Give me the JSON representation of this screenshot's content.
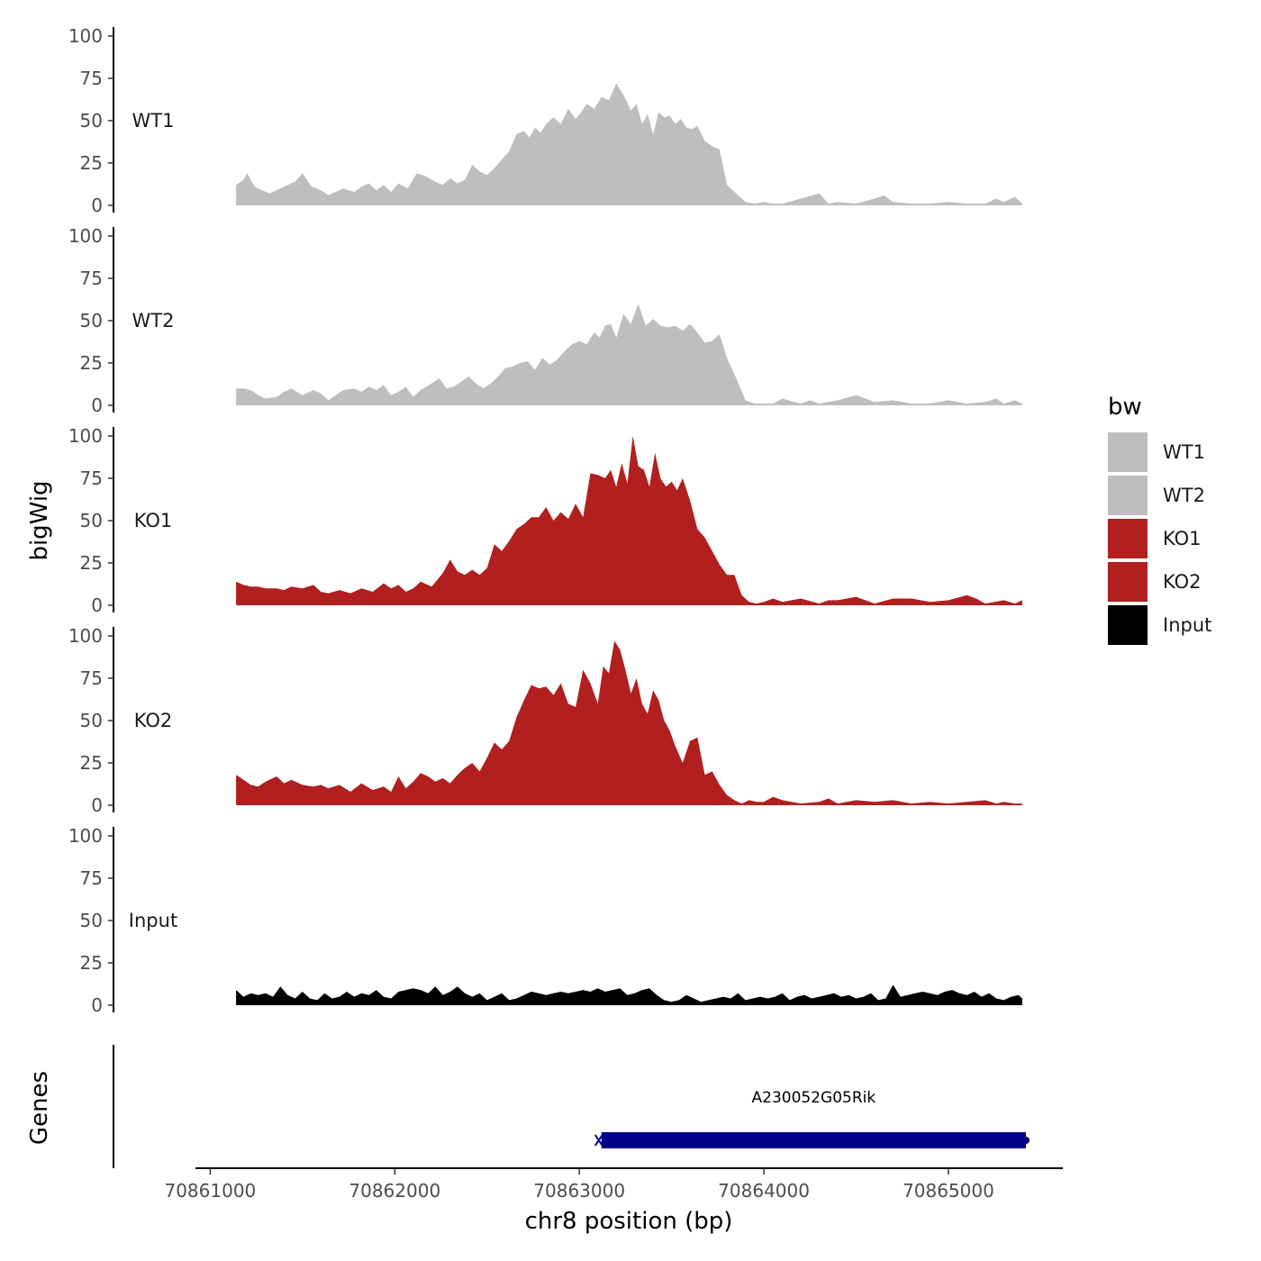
{
  "chart_data": {
    "type": "area",
    "ylabel": "bigWig",
    "xlabel": "chr8 position (bp)",
    "genes_label": "Genes",
    "ylim": [
      0,
      100
    ],
    "yticks": [
      0,
      25,
      50,
      75,
      100
    ],
    "ytick_labels": [
      "0",
      "25",
      "50",
      "75",
      "100"
    ],
    "xlim": [
      70860920,
      70865620
    ],
    "xticks": [
      70861000,
      70862000,
      70863000,
      70864000,
      70865000
    ],
    "xtick_labels": [
      "70861000",
      "70862000",
      "70863000",
      "70864000",
      "70865000"
    ],
    "signal_range": [
      70861140,
      70865400
    ],
    "legend": {
      "title": "bw",
      "entries": [
        {
          "label": "WT1",
          "color": "#bebebe"
        },
        {
          "label": "WT2",
          "color": "#bebebe"
        },
        {
          "label": "KO1",
          "color": "#b21f1f"
        },
        {
          "label": "KO2",
          "color": "#b21f1f"
        },
        {
          "label": "Input",
          "color": "#000000"
        }
      ]
    },
    "series": [
      {
        "name": "WT1",
        "label": "WT1",
        "color": "#bebebe",
        "x": [
          70861140,
          70861180,
          70861200,
          70861240,
          70861280,
          70861320,
          70861380,
          70861420,
          70861460,
          70861500,
          70861550,
          70861600,
          70861640,
          70861680,
          70861720,
          70861780,
          70861820,
          70861860,
          70861900,
          70861940,
          70861980,
          70862020,
          70862070,
          70862120,
          70862170,
          70862220,
          70862260,
          70862300,
          70862340,
          70862380,
          70862420,
          70862460,
          70862500,
          70862540,
          70862580,
          70862620,
          70862660,
          70862700,
          70862730,
          70862760,
          70862790,
          70862820,
          70862860,
          70862900,
          70862940,
          70862980,
          70863010,
          70863040,
          70863080,
          70863120,
          70863160,
          70863200,
          70863240,
          70863280,
          70863310,
          70863340,
          70863370,
          70863400,
          70863430,
          70863460,
          70863490,
          70863520,
          70863550,
          70863580,
          70863610,
          70863640,
          70863680,
          70863720,
          70863760,
          70863800,
          70863850,
          70863900,
          70863950,
          70864000,
          70864050,
          70864100,
          70864200,
          70864300,
          70864350,
          70864400,
          70864500,
          70864600,
          70864650,
          70864700,
          70864800,
          70864900,
          70865000,
          70865100,
          70865200,
          70865260,
          70865300,
          70865360,
          70865400
        ],
        "values": [
          12,
          15,
          19,
          11,
          9,
          7,
          10,
          12,
          14,
          19,
          11,
          9,
          6,
          8,
          10,
          8,
          11,
          13,
          9,
          12,
          8,
          13,
          10,
          19,
          17,
          14,
          12,
          16,
          13,
          15,
          24,
          20,
          18,
          22,
          27,
          32,
          42,
          44,
          40,
          46,
          43,
          48,
          52,
          48,
          57,
          51,
          55,
          60,
          57,
          64,
          62,
          72,
          65,
          56,
          60,
          48,
          54,
          42,
          55,
          52,
          53,
          48,
          51,
          46,
          45,
          47,
          38,
          35,
          33,
          12,
          7,
          2,
          1,
          2,
          1,
          1,
          4,
          7,
          1,
          2,
          1,
          4,
          6,
          2,
          1,
          1,
          2,
          1,
          1,
          4,
          2,
          5,
          1
        ]
      },
      {
        "name": "WT2",
        "label": "WT2",
        "color": "#bebebe",
        "x": [
          70861140,
          70861180,
          70861220,
          70861260,
          70861300,
          70861360,
          70861400,
          70861440,
          70861500,
          70861560,
          70861600,
          70861640,
          70861680,
          70861720,
          70861780,
          70861820,
          70861860,
          70861900,
          70861940,
          70861980,
          70862020,
          70862060,
          70862100,
          70862140,
          70862200,
          70862240,
          70862280,
          70862320,
          70862360,
          70862400,
          70862440,
          70862480,
          70862520,
          70862560,
          70862600,
          70862640,
          70862680,
          70862720,
          70862760,
          70862800,
          70862840,
          70862880,
          70862920,
          70862960,
          70863000,
          70863040,
          70863080,
          70863110,
          70863140,
          70863170,
          70863200,
          70863240,
          70863280,
          70863320,
          70863360,
          70863400,
          70863440,
          70863480,
          70863520,
          70863560,
          70863600,
          70863640,
          70863680,
          70863720,
          70863760,
          70863800,
          70863850,
          70863900,
          70863950,
          70864000,
          70864050,
          70864100,
          70864200,
          70864250,
          70864300,
          70864400,
          70864500,
          70864600,
          70864700,
          70864800,
          70864900,
          70865000,
          70865100,
          70865200,
          70865260,
          70865300,
          70865360,
          70865400
        ],
        "values": [
          10,
          10,
          9,
          6,
          4,
          5,
          8,
          10,
          6,
          9,
          7,
          3,
          6,
          9,
          10,
          8,
          11,
          9,
          12,
          6,
          8,
          11,
          5,
          9,
          13,
          16,
          10,
          11,
          14,
          17,
          13,
          10,
          13,
          17,
          22,
          23,
          25,
          26,
          21,
          28,
          24,
          27,
          32,
          36,
          38,
          36,
          43,
          40,
          47,
          48,
          40,
          54,
          48,
          60,
          47,
          51,
          47,
          46,
          47,
          44,
          48,
          43,
          37,
          38,
          42,
          28,
          16,
          3,
          1,
          1,
          1,
          4,
          1,
          3,
          1,
          3,
          6,
          2,
          3,
          1,
          1,
          3,
          1,
          2,
          4,
          1,
          3,
          1
        ]
      },
      {
        "name": "KO1",
        "label": "KO1",
        "color": "#b21f1f",
        "x": [
          70861140,
          70861180,
          70861220,
          70861260,
          70861300,
          70861360,
          70861400,
          70861440,
          70861500,
          70861560,
          70861600,
          70861640,
          70861700,
          70861760,
          70861820,
          70861880,
          70861940,
          70861980,
          70862020,
          70862060,
          70862100,
          70862140,
          70862200,
          70862260,
          70862300,
          70862340,
          70862380,
          70862420,
          70862460,
          70862500,
          70862540,
          70862580,
          70862620,
          70862660,
          70862700,
          70862740,
          70862780,
          70862820,
          70862860,
          70862900,
          70862940,
          70862980,
          70863020,
          70863060,
          70863100,
          70863140,
          70863170,
          70863200,
          70863230,
          70863260,
          70863290,
          70863320,
          70863350,
          70863380,
          70863410,
          70863440,
          70863470,
          70863500,
          70863530,
          70863560,
          70863600,
          70863640,
          70863680,
          70863720,
          70863760,
          70863800,
          70863840,
          70863880,
          70863920,
          70863960,
          70864000,
          70864050,
          70864100,
          70864200,
          70864300,
          70864350,
          70864400,
          70864500,
          70864600,
          70864700,
          70864800,
          70864900,
          70865000,
          70865100,
          70865150,
          70865200,
          70865300,
          70865360,
          70865400
        ],
        "values": [
          14,
          12,
          11,
          11,
          10,
          10,
          9,
          11,
          10,
          12,
          8,
          7,
          9,
          7,
          10,
          8,
          13,
          10,
          12,
          8,
          10,
          14,
          11,
          19,
          27,
          20,
          18,
          21,
          18,
          22,
          36,
          32,
          38,
          45,
          48,
          52,
          52,
          58,
          50,
          55,
          51,
          60,
          52,
          78,
          77,
          75,
          80,
          70,
          84,
          72,
          100,
          82,
          80,
          70,
          90,
          75,
          70,
          73,
          68,
          75,
          62,
          45,
          40,
          32,
          24,
          18,
          18,
          6,
          2,
          1,
          2,
          4,
          2,
          4,
          1,
          3,
          3,
          5,
          1,
          4,
          4,
          2,
          3,
          6,
          4,
          1,
          3,
          1,
          3
        ]
      },
      {
        "name": "KO2",
        "label": "KO2",
        "color": "#b21f1f",
        "x": [
          70861140,
          70861180,
          70861220,
          70861260,
          70861300,
          70861360,
          70861400,
          70861440,
          70861500,
          70861560,
          70861600,
          70861640,
          70861700,
          70861760,
          70861820,
          70861880,
          70861940,
          70861980,
          70862020,
          70862060,
          70862100,
          70862140,
          70862180,
          70862220,
          70862260,
          70862300,
          70862340,
          70862380,
          70862420,
          70862460,
          70862500,
          70862540,
          70862580,
          70862620,
          70862660,
          70862700,
          70862740,
          70862780,
          70862820,
          70862860,
          70862900,
          70862940,
          70862980,
          70863020,
          70863060,
          70863100,
          70863130,
          70863160,
          70863190,
          70863220,
          70863250,
          70863280,
          70863310,
          70863340,
          70863370,
          70863400,
          70863430,
          70863460,
          70863490,
          70863520,
          70863560,
          70863600,
          70863640,
          70863680,
          70863720,
          70863760,
          70863800,
          70863840,
          70863880,
          70863920,
          70863960,
          70864000,
          70864050,
          70864100,
          70864200,
          70864300,
          70864350,
          70864400,
          70864500,
          70864600,
          70864700,
          70864800,
          70864900,
          70865000,
          70865100,
          70865200,
          70865260,
          70865300,
          70865360,
          70865400
        ],
        "values": [
          18,
          15,
          12,
          11,
          14,
          17,
          13,
          15,
          12,
          11,
          12,
          10,
          12,
          8,
          13,
          9,
          11,
          8,
          17,
          10,
          14,
          19,
          17,
          14,
          16,
          13,
          18,
          22,
          25,
          20,
          28,
          37,
          33,
          38,
          52,
          62,
          71,
          69,
          70,
          65,
          72,
          60,
          58,
          80,
          72,
          60,
          82,
          78,
          97,
          92,
          80,
          66,
          75,
          60,
          54,
          68,
          62,
          50,
          44,
          35,
          25,
          38,
          40,
          18,
          20,
          12,
          6,
          3,
          1,
          3,
          2,
          2,
          5,
          3,
          1,
          2,
          4,
          1,
          3,
          2,
          3,
          1,
          2,
          1,
          2,
          3,
          1,
          2,
          1,
          1
        ]
      },
      {
        "name": "Input",
        "label": "Input",
        "color": "#000000",
        "x": [
          70861140,
          70861180,
          70861220,
          70861260,
          70861300,
          70861340,
          70861380,
          70861420,
          70861460,
          70861500,
          70861540,
          70861580,
          70861620,
          70861660,
          70861700,
          70861740,
          70861780,
          70861820,
          70861860,
          70861900,
          70861940,
          70861980,
          70862020,
          70862060,
          70862100,
          70862140,
          70862180,
          70862220,
          70862260,
          70862300,
          70862340,
          70862380,
          70862420,
          70862460,
          70862500,
          70862540,
          70862580,
          70862620,
          70862660,
          70862700,
          70862740,
          70862780,
          70862820,
          70862860,
          70862900,
          70862940,
          70862980,
          70863020,
          70863060,
          70863100,
          70863140,
          70863180,
          70863220,
          70863260,
          70863300,
          70863340,
          70863380,
          70863420,
          70863460,
          70863500,
          70863540,
          70863580,
          70863620,
          70863660,
          70863700,
          70863740,
          70863780,
          70863820,
          70863860,
          70863900,
          70863940,
          70863980,
          70864020,
          70864060,
          70864100,
          70864140,
          70864180,
          70864220,
          70864260,
          70864300,
          70864340,
          70864380,
          70864420,
          70864460,
          70864500,
          70864540,
          70864580,
          70864620,
          70864660,
          70864700,
          70864740,
          70864780,
          70864820,
          70864860,
          70864900,
          70864940,
          70864980,
          70865020,
          70865060,
          70865100,
          70865140,
          70865180,
          70865220,
          70865260,
          70865300,
          70865340,
          70865380,
          70865400
        ],
        "values": [
          9,
          5,
          7,
          6,
          7,
          5,
          11,
          6,
          4,
          8,
          4,
          3,
          7,
          4,
          5,
          8,
          5,
          7,
          6,
          9,
          5,
          4,
          8,
          9,
          10,
          9,
          7,
          11,
          6,
          8,
          11,
          7,
          5,
          7,
          3,
          5,
          7,
          3,
          4,
          6,
          8,
          7,
          6,
          7,
          8,
          7,
          8,
          9,
          8,
          10,
          8,
          9,
          10,
          6,
          7,
          9,
          10,
          6,
          3,
          2,
          3,
          6,
          4,
          2,
          3,
          4,
          5,
          4,
          7,
          3,
          4,
          5,
          4,
          5,
          7,
          3,
          5,
          6,
          4,
          5,
          6,
          7,
          5,
          6,
          4,
          5,
          7,
          3,
          4,
          12,
          5,
          6,
          7,
          8,
          7,
          6,
          8,
          9,
          7,
          6,
          8,
          5,
          7,
          4,
          3,
          5,
          6,
          4
        ]
      }
    ],
    "genes": [
      {
        "name": "A230052G05Rik",
        "start": 70863120,
        "end": 70865420,
        "strand": "-",
        "color": "#00008b"
      }
    ]
  }
}
